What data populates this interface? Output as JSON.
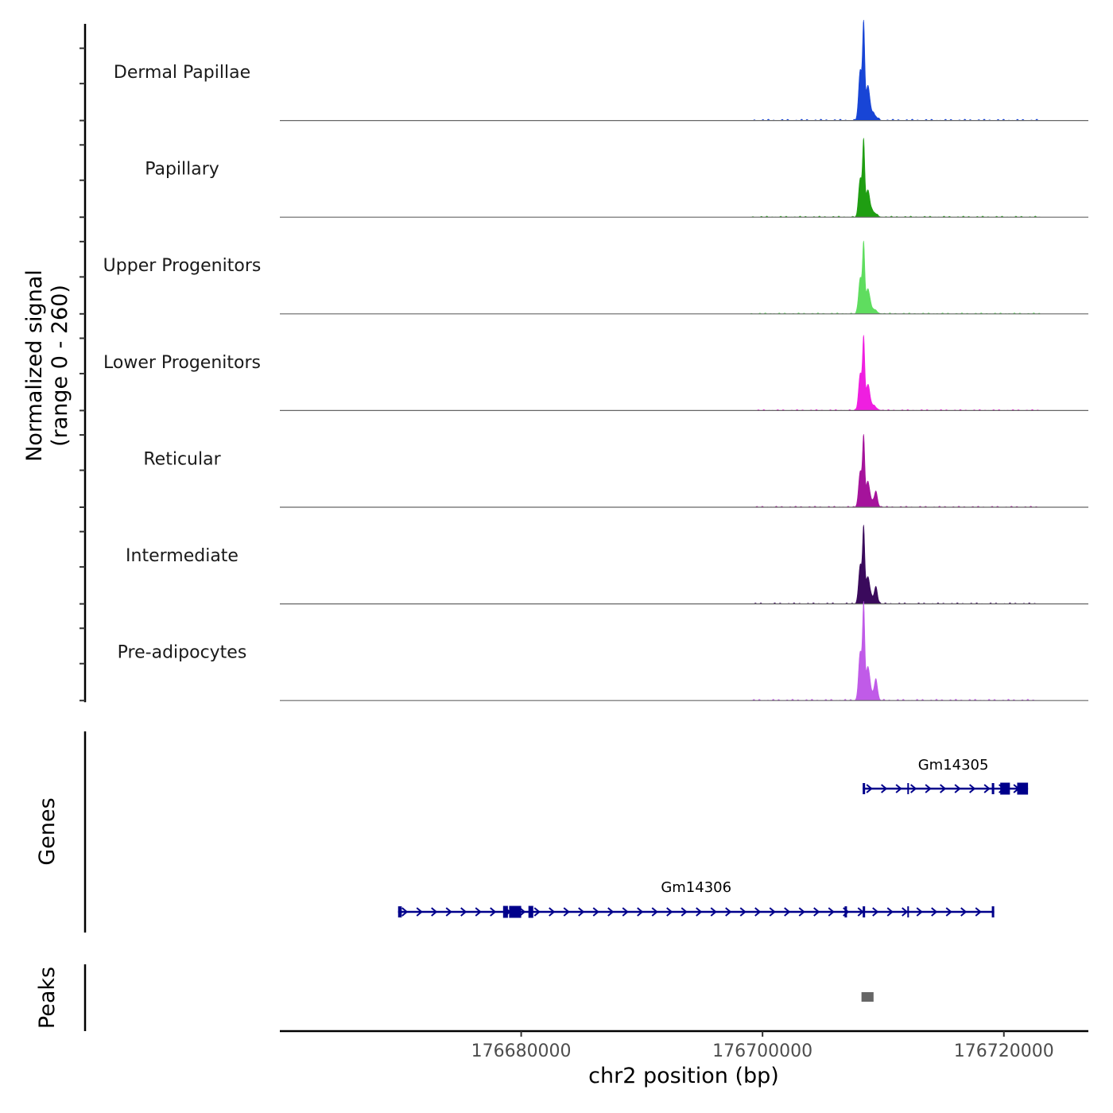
{
  "chart_data": {
    "type": "coverage",
    "chromosome": "chr2",
    "xlabel": "chr2 position (bp)",
    "xlim": [
      176660000,
      176727000
    ],
    "x_ticks": [
      176680000,
      176700000,
      176720000
    ],
    "x_tick_labels": [
      "176680000",
      "176700000",
      "176720000"
    ],
    "signal": {
      "ylabel_line1": "Normalized signal",
      "ylabel_line2": "(range 0 - 260)",
      "ylim": [
        0,
        260
      ],
      "baseline_color": "#666666",
      "tracks": [
        {
          "name": "Dermal Papillae",
          "color": "#1845d6",
          "peak_max": 255
        },
        {
          "name": "Papillary",
          "color": "#1f9e12",
          "peak_max": 200
        },
        {
          "name": "Upper Progenitors",
          "color": "#5fdd5f",
          "peak_max": 185
        },
        {
          "name": "Lower Progenitors",
          "color": "#ef1fe0",
          "peak_max": 190
        },
        {
          "name": "Reticular",
          "color": "#a5139b",
          "peak_max": 185
        },
        {
          "name": "Intermediate",
          "color": "#3a0a5c",
          "peak_max": 200
        },
        {
          "name": "Pre-adipocytes",
          "color": "#c05be8",
          "peak_max": 250
        }
      ]
    },
    "genes": {
      "label": "Genes",
      "color": "#00008b",
      "items": [
        {
          "name": "Gm14305",
          "strand": "+",
          "start": 176708300,
          "end": 176722000,
          "exons": [
            [
              176708300,
              176708500
            ],
            [
              176712000,
              176712100
            ],
            [
              176719000,
              176719200
            ],
            [
              176719700,
              176720500
            ],
            [
              176721100,
              176722000
            ]
          ]
        },
        {
          "name": "Gm14306",
          "strand": "+",
          "start": 176669800,
          "end": 176719200,
          "exons": [
            [
              176669800,
              176670100
            ],
            [
              176678500,
              176678900
            ],
            [
              176679000,
              176680000
            ],
            [
              176680600,
              176681000
            ],
            [
              176706800,
              176707000
            ],
            [
              176708300,
              176708500
            ],
            [
              176712000,
              176712100
            ],
            [
              176719000,
              176719200
            ]
          ]
        }
      ]
    },
    "peaks": {
      "label": "Peaks",
      "color": "#666666",
      "regions": [
        [
          176708200,
          176709200
        ]
      ]
    }
  }
}
